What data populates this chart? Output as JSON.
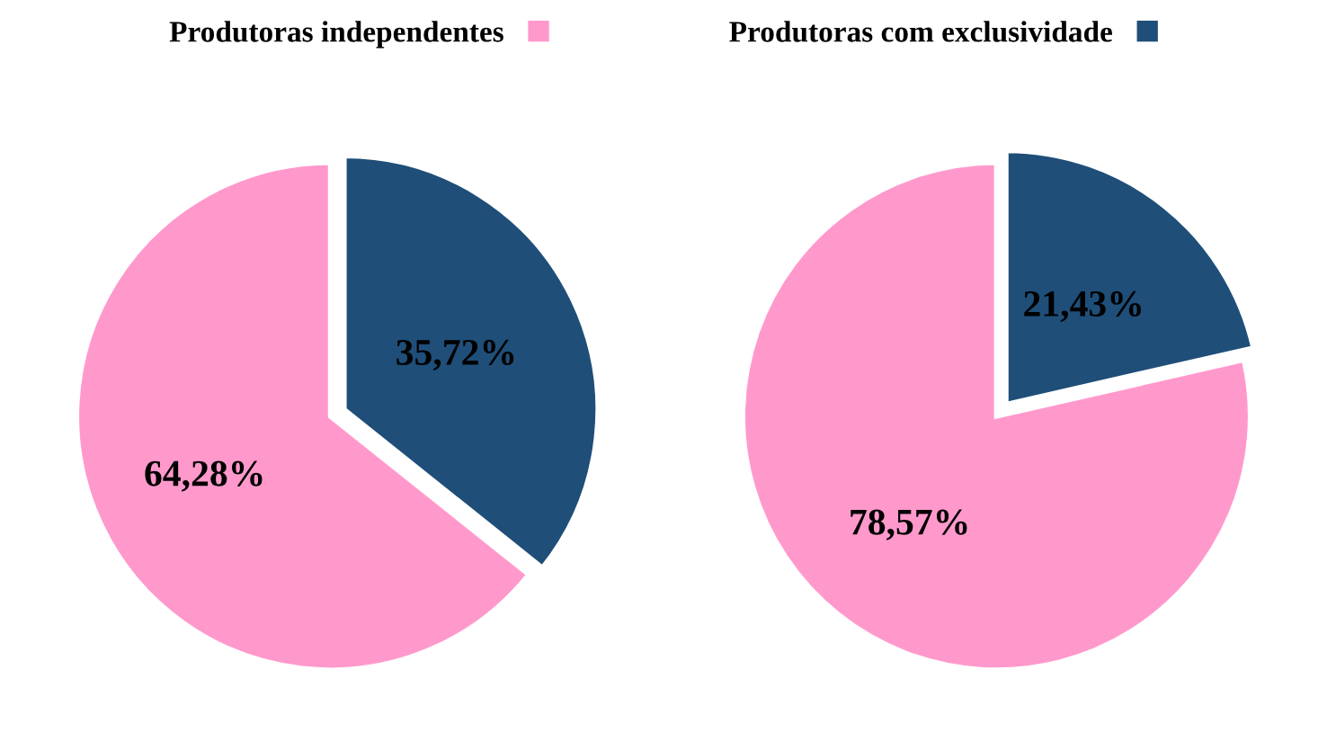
{
  "chart_data": [
    {
      "type": "pie",
      "categories": [
        "Produtoras independentes",
        "Produtoras com exclusividade"
      ],
      "values": [
        64.28,
        35.72
      ],
      "colors": [
        "#ff99cc",
        "#1f4e79"
      ],
      "value_labels": [
        "64,28%",
        "35,72%"
      ],
      "legend": "top"
    },
    {
      "type": "pie",
      "categories": [
        null,
        null
      ],
      "values": [
        78.57,
        21.43
      ],
      "colors": [
        "#ff99cc",
        "#1f4e79"
      ],
      "value_labels": [
        "78,57%",
        "21,43%"
      ]
    }
  ]
}
